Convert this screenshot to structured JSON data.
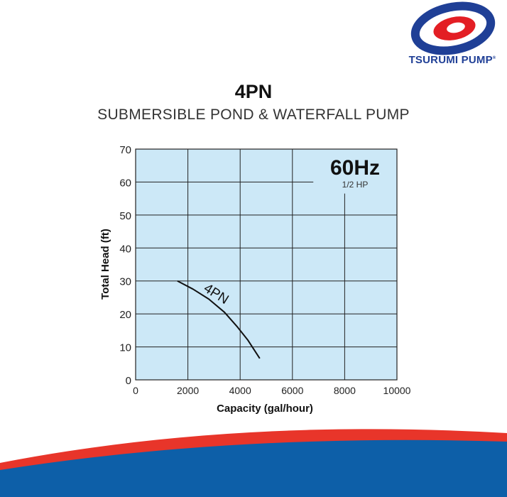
{
  "brand": {
    "name": "TSURUMI PUMP",
    "reg_mark": "®",
    "colors": {
      "red": "#e31e24",
      "blue": "#1f3f96"
    }
  },
  "title": "4PN",
  "subtitle": "SUBMERSIBLE POND & WATERFALL PUMP",
  "chart_data": {
    "type": "line",
    "freq_label": "60Hz",
    "power_label": "1/2 HP",
    "xlabel": "Capacity (gal/hour)",
    "ylabel": "Total Head (ft)",
    "xlim": [
      0,
      10000
    ],
    "ylim": [
      0,
      70
    ],
    "xticks": [
      0,
      2000,
      4000,
      6000,
      8000,
      10000
    ],
    "yticks": [
      0,
      10,
      20,
      30,
      40,
      50,
      60,
      70
    ],
    "grid": true,
    "plot_background": "#cce8f7",
    "series": [
      {
        "name": "4PN",
        "color": "#111111",
        "x": [
          1600,
          2200,
          2800,
          3400,
          3900,
          4300,
          4750
        ],
        "y": [
          30,
          27.5,
          24.5,
          20.5,
          16,
          12,
          6.5
        ]
      }
    ]
  },
  "decor": {
    "wave_red": "#e8352a",
    "wave_blue": "#0d5fa8"
  }
}
